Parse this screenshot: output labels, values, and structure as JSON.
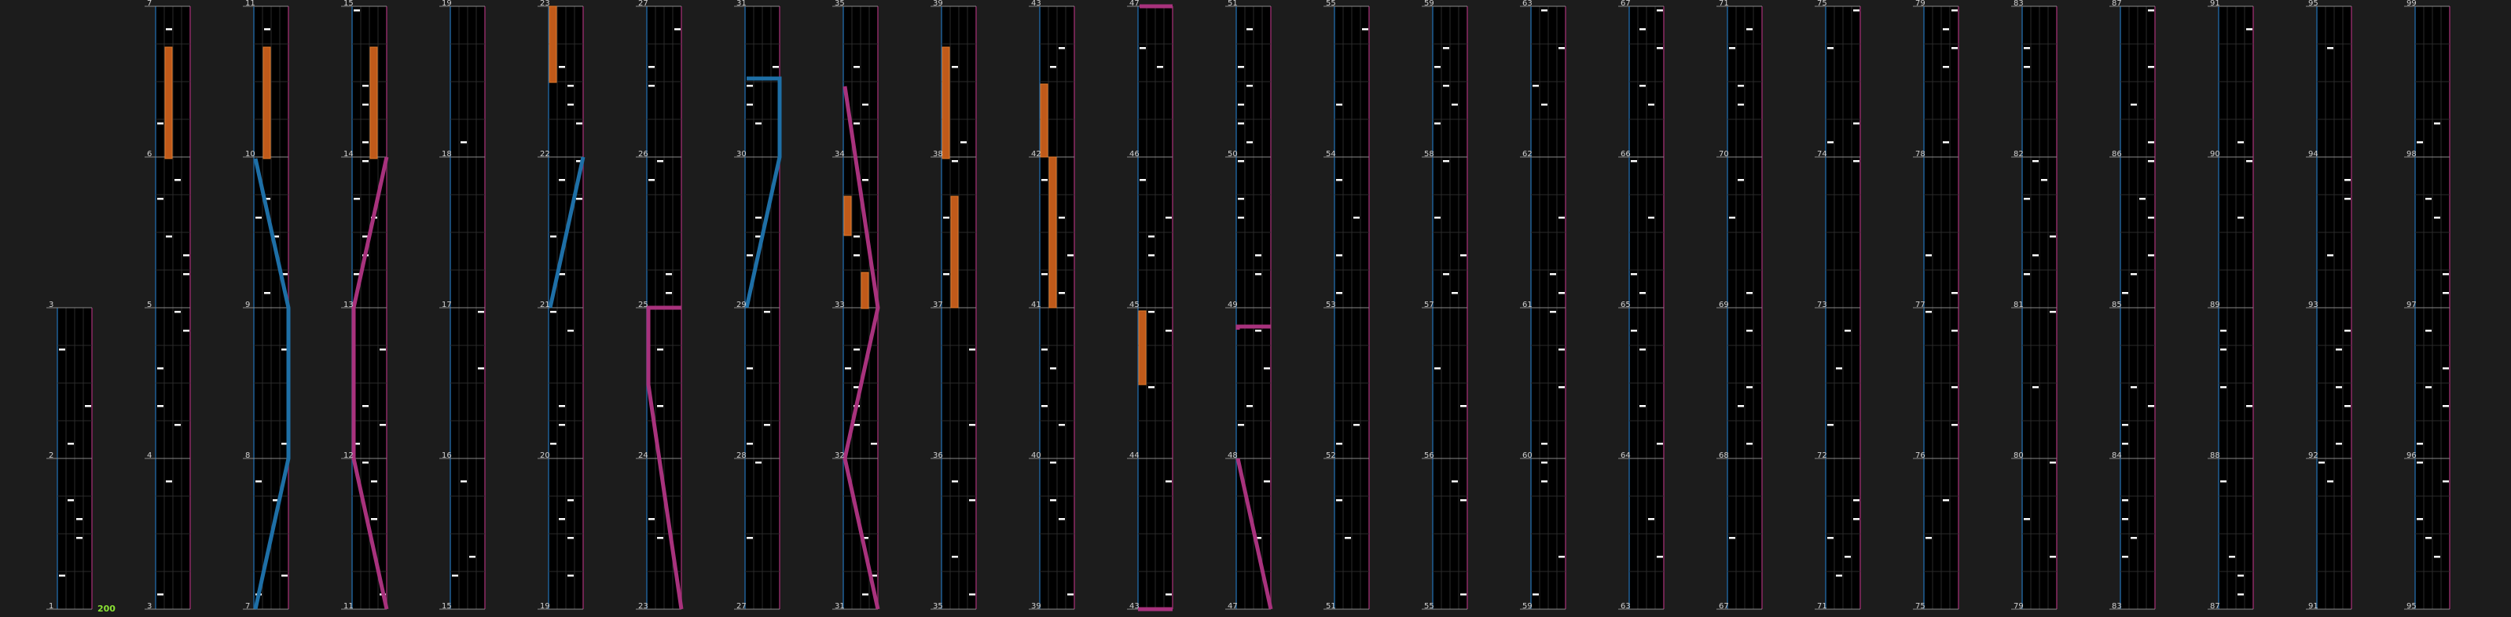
{
  "editor": {
    "measure_numbers": [
      "1",
      "2",
      "3",
      "4",
      "5",
      "6",
      "7",
      "8",
      "9",
      "10",
      "11",
      "12",
      "13",
      "14",
      "15",
      "16",
      "17",
      "18",
      "19",
      "20",
      "21",
      "22",
      "23",
      "24",
      "25",
      "26",
      "27",
      "28",
      "29",
      "30",
      "31",
      "32",
      "33",
      "34",
      "35",
      "36",
      "37",
      "38",
      "39",
      "40",
      "41",
      "42",
      "43",
      "44",
      "45",
      "46",
      "47",
      "48",
      "49",
      "50",
      "51",
      "52",
      "53",
      "54",
      "55",
      "56",
      "57",
      "58",
      "59",
      "60",
      "61",
      "62",
      "63",
      "64",
      "65",
      "66",
      "67",
      "68",
      "69",
      "70",
      "71",
      "72",
      "73",
      "74",
      "75",
      "76",
      "77",
      "78",
      "79",
      "80",
      "81",
      "82",
      "83",
      "84",
      "85",
      "86",
      "87",
      "88",
      "89",
      "90",
      "91",
      "92",
      "93",
      "94",
      "95",
      "96",
      "97",
      "98",
      "99"
    ],
    "combo_count": "200",
    "colors": {
      "background": "#1c1c1c",
      "lane": "#000000",
      "left_rail": "#1f5f96",
      "right_rail": "#8c2a64",
      "tap_note": "#ffffff",
      "hold_note": "#c05a1a",
      "hold_border": "#e07a2a",
      "slide_blue": "#1e6fa6",
      "slide_pink": "#a8327d",
      "combo": "#8ae234",
      "measure_line": "#8a8a8a",
      "grid_line": "#2a2a2a"
    }
  }
}
